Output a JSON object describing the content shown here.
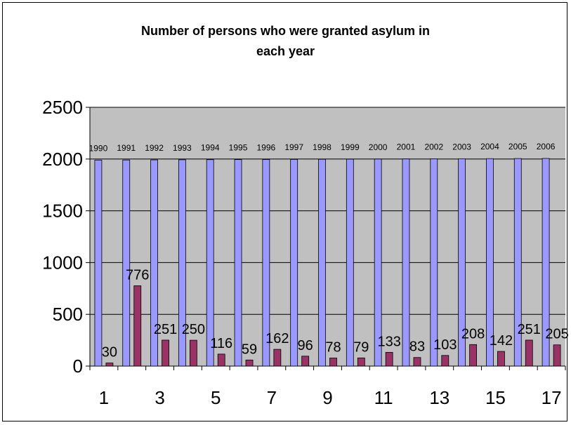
{
  "chart_data": {
    "type": "bar",
    "title_lines": [
      "Number of persons who were granted asylum in",
      "each year"
    ],
    "categories": [
      "1",
      "2",
      "3",
      "4",
      "5",
      "6",
      "7",
      "8",
      "9",
      "10",
      "11",
      "12",
      "13",
      "14",
      "15",
      "16",
      "17"
    ],
    "x_tick_labels": [
      "1",
      "3",
      "5",
      "7",
      "9",
      "11",
      "13",
      "15",
      "17"
    ],
    "y_tick_labels": [
      "0",
      "500",
      "1000",
      "1500",
      "2000",
      "2500"
    ],
    "ylim": [
      0,
      2500
    ],
    "grid": true,
    "legend": "none",
    "series": [
      {
        "values": [
          1990,
          1991,
          1992,
          1993,
          1994,
          1995,
          1996,
          1997,
          1998,
          1999,
          2000,
          2001,
          2002,
          2003,
          2004,
          2005,
          2006
        ],
        "data_labels": [
          "1990",
          "1991",
          "1992",
          "1993",
          "1994",
          "1995",
          "1996",
          "1997",
          "1998",
          "1999",
          "2000",
          "2001",
          "2002",
          "2003",
          "2004",
          "2005",
          "2006"
        ],
        "color": "#9999ff"
      },
      {
        "values": [
          30,
          776,
          251,
          250,
          116,
          59,
          162,
          96,
          78,
          79,
          133,
          83,
          103,
          208,
          142,
          251,
          205
        ],
        "data_labels": [
          "30",
          "776",
          "251",
          "250",
          "116",
          "59",
          "162",
          "96",
          "78",
          "79",
          "133",
          "83",
          "103",
          "208",
          "142",
          "251",
          "205"
        ],
        "color": "#993366"
      }
    ],
    "plot_background": "#c0c0c0"
  }
}
